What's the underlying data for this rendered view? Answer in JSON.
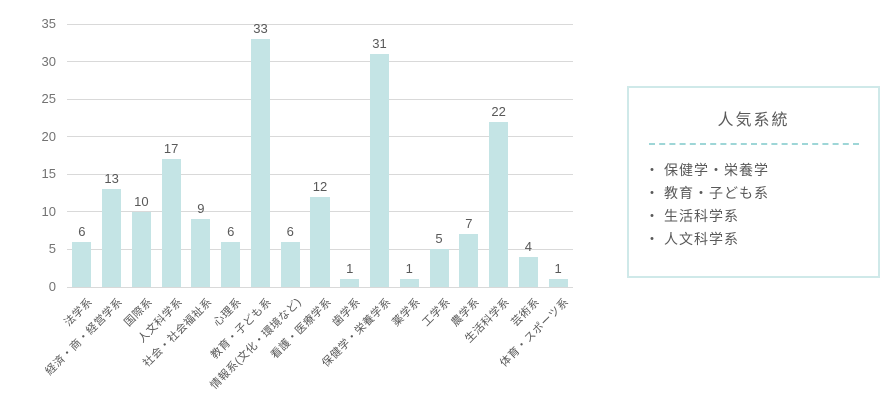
{
  "chart_data": {
    "type": "bar",
    "title": "",
    "categories": [
      "法学系",
      "経済・商・経営学系",
      "国際系",
      "人文科学系",
      "社会・社会福祉系",
      "心理系",
      "教育・子ども系",
      "情報系(文化・環境など)",
      "看護・医療学系",
      "歯学系",
      "保健学・栄養学系",
      "薬学系",
      "工学系",
      "農学系",
      "生活科学系",
      "芸術系",
      "体育・スポーツ系"
    ],
    "values": [
      6,
      13,
      10,
      17,
      9,
      6,
      33,
      6,
      12,
      1,
      31,
      1,
      5,
      7,
      22,
      4,
      1
    ],
    "xlabel": "",
    "ylabel": "",
    "ylim": [
      0,
      35
    ],
    "yticks": [
      0,
      5,
      10,
      15,
      20,
      25,
      30,
      35
    ],
    "grid": true,
    "legend_position": "right",
    "colors": {
      "bar": "#c4e4e5",
      "gridline": "#d9d9d9",
      "tick_label": "#737373",
      "value_label": "#595959",
      "category_label": "#595959"
    }
  },
  "legend": {
    "title": "人気系統",
    "bullet": "・",
    "items": [
      "保健学・栄養学",
      "教育・子ども系",
      "生活科学系",
      "人文科学系"
    ],
    "colors": {
      "border": "#cfe9e9",
      "divider": "#9ed6d7",
      "text": "#595959"
    }
  }
}
